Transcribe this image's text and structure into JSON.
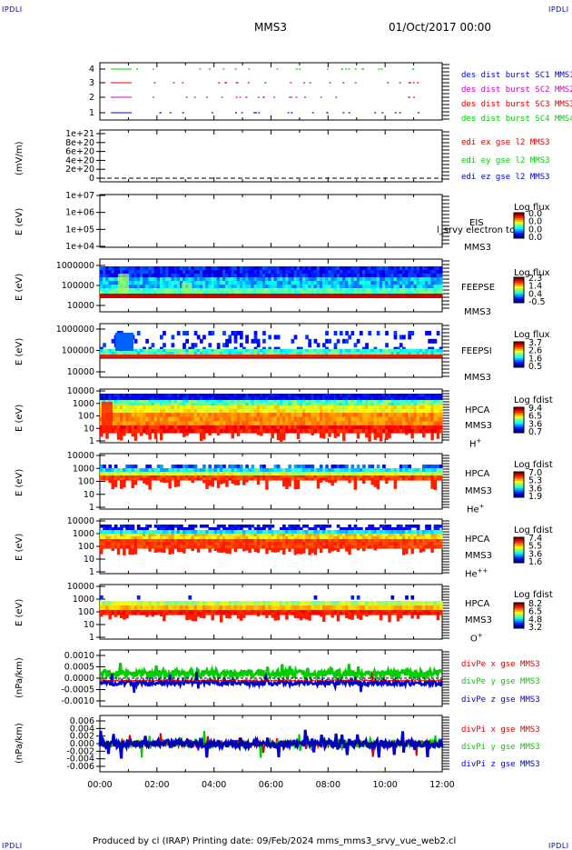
{
  "header": {
    "corner_left": "IPDLI",
    "corner_right": "IPDLI",
    "spacecraft": "MMS3",
    "date": "01/Oct/2017 00:00"
  },
  "footer": {
    "text": "Produced by cl (IRAP)   Printing date: 09/Feb/2024   mms_mms3_srvy_vue_web2.cl",
    "corner_left": "IPDLI",
    "corner_right": "IPDLI"
  },
  "x_axis": {
    "ticks": [
      "00:00",
      "02:00",
      "04:00",
      "06:00",
      "08:00",
      "10:00",
      "12:00"
    ],
    "range_hours": [
      0,
      12
    ]
  },
  "colors": {
    "blue": "#0000cc",
    "red": "#dd0000",
    "green": "#00cc00",
    "magenta": "#cc00cc",
    "black": "#000000"
  },
  "panels": [
    {
      "id": "burst",
      "ytick_labels": [
        "4",
        "3",
        "2",
        "1"
      ],
      "legend": [
        {
          "text": "des dist burst SC1 MMS1",
          "color": "#0000cc"
        },
        {
          "text": "des dist burst SC2 MMS2",
          "color": "#cc00cc"
        },
        {
          "text": "des dist burst SC3 MMS3",
          "color": "#dd0000"
        },
        {
          "text": "des dist burst SC4 MMS4",
          "color": "#00cc00"
        }
      ]
    },
    {
      "id": "edi",
      "ylabel": "(mV/m)",
      "ytick_labels": [
        "1e+21",
        "8e+20",
        "6e+20",
        "4e+20",
        "2e+20",
        "0"
      ],
      "legend": [
        {
          "text": "edi ex gse l2 MMS3",
          "color": "#dd0000"
        },
        {
          "text": "edi ey gse l2 MMS3",
          "color": "#00cc00"
        },
        {
          "text": "edi ez gse l2 MMS3",
          "color": "#0000cc"
        }
      ]
    },
    {
      "id": "eis",
      "ylabel": "E (eV)",
      "ytick_labels": [
        "1e+07",
        "1e+06",
        "1e+05",
        "1e+04"
      ],
      "instrument": [
        "EIS",
        "MMS3"
      ],
      "overlay_text": "l_srvy electron to",
      "cb_title": "Log flux",
      "cb_values": [
        "0.0",
        "0.0",
        "0.0",
        "0.0"
      ]
    },
    {
      "id": "feepse",
      "ylabel": "E (eV)",
      "ytick_labels": [
        "1000000",
        "100000",
        "10000"
      ],
      "instrument": [
        "FEEPSE",
        "MMS3"
      ],
      "cb_title": "Log flux",
      "cb_values": [
        "2.3",
        "1.4",
        "0.4",
        "-0.5"
      ]
    },
    {
      "id": "feepsi",
      "ylabel": "E (eV)",
      "ytick_labels": [
        "1000000",
        "100000",
        "10000"
      ],
      "instrument": [
        "FEEPSI",
        "MMS3"
      ],
      "cb_title": "Log flux",
      "cb_values": [
        "3.7",
        "2.6",
        "1.6",
        "0.5"
      ]
    },
    {
      "id": "hpca_h",
      "ylabel": "E (eV)",
      "ytick_labels": [
        "10000",
        "1000",
        "100",
        "10",
        "1"
      ],
      "instrument": [
        "HPCA",
        "MMS3"
      ],
      "species": "H",
      "charge": "+",
      "cb_title": "Log fdist",
      "cb_values": [
        "9.4",
        "6.5",
        "3.6",
        "0.7"
      ]
    },
    {
      "id": "hpca_he",
      "ylabel": "E (eV)",
      "ytick_labels": [
        "10000",
        "1000",
        "100",
        "10",
        "1"
      ],
      "instrument": [
        "HPCA",
        "MMS3"
      ],
      "species": "He",
      "charge": "+",
      "cb_title": "Log fdist",
      "cb_values": [
        "7.0",
        "5.3",
        "3.6",
        "1.9"
      ]
    },
    {
      "id": "hpca_hepp",
      "ylabel": "E (eV)",
      "ytick_labels": [
        "10000",
        "1000",
        "100",
        "10",
        "1"
      ],
      "instrument": [
        "HPCA",
        "MMS3"
      ],
      "species": "He",
      "charge": "++",
      "cb_title": "Log fdist",
      "cb_values": [
        "7.4",
        "5.5",
        "3.6",
        "1.6"
      ]
    },
    {
      "id": "hpca_o",
      "ylabel": "E (eV)",
      "ytick_labels": [
        "10000",
        "1000",
        "100",
        "10",
        "1"
      ],
      "instrument": [
        "HPCA",
        "MMS3"
      ],
      "species": "O",
      "charge": "+",
      "cb_title": "Log fdist",
      "cb_values": [
        "8.2",
        "6.5",
        "4.8",
        "3.2"
      ]
    },
    {
      "id": "divpe",
      "ylabel": "(nPa/km)",
      "ytick_labels": [
        "0.0010",
        "0.0005",
        "0.0000",
        "-0.0005",
        "-0.0010"
      ],
      "legend": [
        {
          "text": "divPe x gse MMS3",
          "color": "#dd0000"
        },
        {
          "text": "divPe y gse MMS3",
          "color": "#00cc00"
        },
        {
          "text": "divPe z gse MMS3",
          "color": "#0000cc"
        }
      ]
    },
    {
      "id": "divpi",
      "ylabel": "(nPa/km)",
      "ytick_labels": [
        "0.006",
        "0.004",
        "0.002",
        "0.000",
        "-0.002",
        "-0.004",
        "-0.006"
      ],
      "legend": [
        {
          "text": "divPi x gse MMS3",
          "color": "#dd0000"
        },
        {
          "text": "divPi y gse MMS3",
          "color": "#00cc00"
        },
        {
          "text": "divPi z gse MMS3",
          "color": "#0000cc"
        }
      ]
    }
  ],
  "chart_data": [
    {
      "type": "scatter",
      "name": "burst intervals",
      "y_categories": [
        "1",
        "2",
        "3",
        "4"
      ],
      "x": "hours 0-12",
      "series": [
        {
          "name": "des dist burst SC1 MMS1",
          "y": 1
        },
        {
          "name": "des dist burst SC2 MMS2",
          "y": 2
        },
        {
          "name": "des dist burst SC3 MMS3",
          "y": 3
        },
        {
          "name": "des dist burst SC4 MMS4",
          "y": 4
        }
      ]
    },
    {
      "type": "line",
      "name": "edi",
      "ylim": [
        0,
        1e+21
      ],
      "note_values": "all series ~0"
    },
    {
      "type": "heatmap",
      "name": "EIS",
      "ylim": [
        10000.0,
        10000000.0
      ],
      "yscale": "log",
      "zlim": [
        0.0,
        0.0
      ]
    },
    {
      "type": "heatmap",
      "name": "FEEPSE",
      "ylim": [
        10000,
        1000000
      ],
      "yscale": "log",
      "zlim": [
        -0.5,
        2.3
      ]
    },
    {
      "type": "heatmap",
      "name": "FEEPSI",
      "ylim": [
        10000,
        1000000
      ],
      "yscale": "log",
      "zlim": [
        0.5,
        3.7
      ]
    },
    {
      "type": "heatmap",
      "name": "HPCA H+",
      "ylim": [
        1,
        10000
      ],
      "yscale": "log",
      "zlim": [
        0.7,
        9.4
      ]
    },
    {
      "type": "heatmap",
      "name": "HPCA He+",
      "ylim": [
        1,
        10000
      ],
      "yscale": "log",
      "zlim": [
        1.9,
        7.0
      ]
    },
    {
      "type": "heatmap",
      "name": "HPCA He++",
      "ylim": [
        1,
        10000
      ],
      "yscale": "log",
      "zlim": [
        1.6,
        7.4
      ]
    },
    {
      "type": "heatmap",
      "name": "HPCA O+",
      "ylim": [
        1,
        10000
      ],
      "yscale": "log",
      "zlim": [
        3.2,
        8.2
      ]
    },
    {
      "type": "line",
      "name": "divPe",
      "ylim": [
        -0.0012,
        0.0012
      ],
      "series": [
        {
          "name": "divPe x gse MMS3",
          "level": -0.0001
        },
        {
          "name": "divPe y gse MMS3",
          "level": 0.0002
        },
        {
          "name": "divPe z gse MMS3",
          "level": -0.0002
        }
      ]
    },
    {
      "type": "line",
      "name": "divPi",
      "ylim": [
        -0.007,
        0.007
      ],
      "series": [
        {
          "name": "divPi x gse MMS3",
          "level": 0.0
        },
        {
          "name": "divPi y gse MMS3",
          "level": 0.0
        },
        {
          "name": "divPi z gse MMS3",
          "level": 0.0
        }
      ]
    }
  ]
}
